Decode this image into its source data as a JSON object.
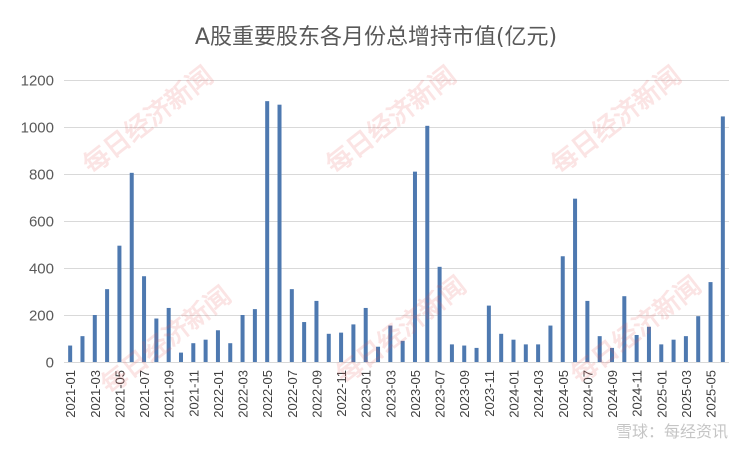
{
  "chart_data": {
    "type": "bar",
    "title": "A股重要股东各月份总增持市值(亿元)",
    "xlabel": "",
    "ylabel": "",
    "ylim": [
      0,
      1200
    ],
    "yticks": [
      0,
      200,
      400,
      600,
      800,
      1000,
      1200
    ],
    "grid": true,
    "legend": "none",
    "bar_color": "#4e79b0",
    "categories": [
      "2021-01",
      "2021-02",
      "2021-03",
      "2021-04",
      "2021-05",
      "2021-06",
      "2021-07",
      "2021-08",
      "2021-09",
      "2021-10",
      "2021-11",
      "2021-12",
      "2022-01",
      "2022-02",
      "2022-03",
      "2022-04",
      "2022-05",
      "2022-06",
      "2022-07",
      "2022-08",
      "2022-09",
      "2022-10",
      "2022-11",
      "2022-12",
      "2023-01",
      "2023-02",
      "2023-03",
      "2023-04",
      "2023-05",
      "2023-06",
      "2023-07",
      "2023-08",
      "2023-09",
      "2023-10",
      "2023-11",
      "2023-12",
      "2024-01",
      "2024-02",
      "2024-03",
      "2024-04",
      "2024-05",
      "2024-06",
      "2024-07",
      "2024-08",
      "2024-09",
      "2024-10",
      "2024-11",
      "2024-12",
      "2025-01",
      "2025-02",
      "2025-03",
      "2025-04",
      "2025-05",
      "2025-06"
    ],
    "tick_labels": [
      "2021-01",
      "2021-03",
      "2021-05",
      "2021-07",
      "2021-09",
      "2021-11",
      "2022-01",
      "2022-03",
      "2022-05",
      "2022-07",
      "2022-09",
      "2022-11",
      "2023-01",
      "2023-03",
      "2023-05",
      "2023-07",
      "2023-09",
      "2023-11",
      "2024-01",
      "2024-03",
      "2024-05",
      "2024-07",
      "2024-09",
      "2024-11",
      "2025-01",
      "2025-03",
      "2025-05"
    ],
    "values": [
      70,
      110,
      200,
      310,
      495,
      805,
      365,
      185,
      230,
      40,
      80,
      95,
      135,
      80,
      200,
      225,
      1110,
      1095,
      310,
      170,
      260,
      120,
      125,
      160,
      230,
      65,
      155,
      90,
      810,
      1005,
      405,
      75,
      70,
      60,
      240,
      120,
      95,
      75,
      75,
      155,
      450,
      695,
      260,
      110,
      60,
      280,
      115,
      150,
      75,
      95,
      110,
      195,
      340,
      1045
    ]
  },
  "watermark": {
    "text": "每日经济新闻",
    "credit": "雪球：每经资讯"
  }
}
